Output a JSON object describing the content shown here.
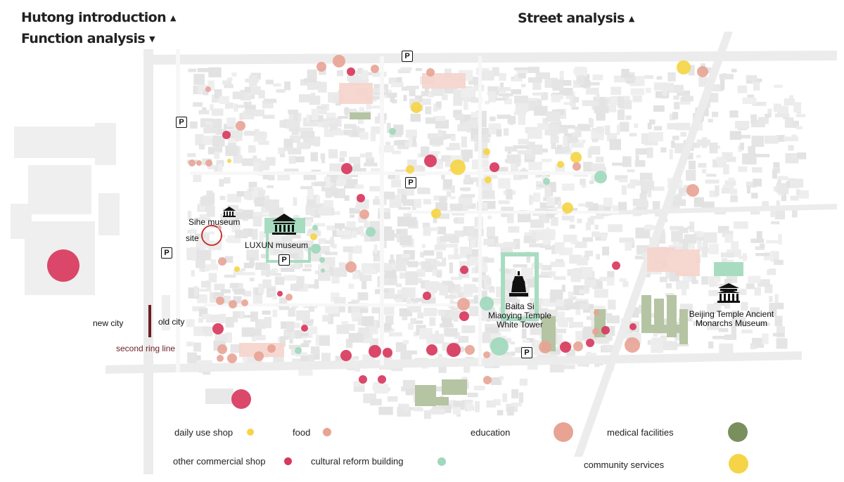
{
  "headers": {
    "hutong_intro": "Hutong introduction",
    "function_analysis": "Function analysis",
    "street_analysis": "Street analysis"
  },
  "map_labels": {
    "sihe_museum": "Sihe museum",
    "site": "site",
    "luxun_museum": "LUXUN museum",
    "baita_line1": "Baita Si",
    "baita_line2": "Miaoying Temple",
    "baita_line3": "White Tower",
    "beijing_line1": "Beijing Temple Ancient",
    "beijing_line2": "Monarchs Museum",
    "new_city": "new city",
    "old_city": "old city",
    "second_ring": "second ring line",
    "parking": "P"
  },
  "legend": {
    "daily_use_shop": "daily use shop",
    "food": "food",
    "education": "education",
    "medical": "medical facilities",
    "other_commercial": "other commercial shop",
    "cultural_reform": "cultural reform building",
    "community": "community services"
  },
  "colors": {
    "daily_use_shop": "#f5d547",
    "food": "#e8a393",
    "education": "#e8a393",
    "medical": "#7a8f5e",
    "other_commercial": "#d8385d",
    "cultural_reform": "#9fd8bd",
    "community": "#f5d547",
    "landmark_green": "#a8dcc0",
    "green_block": "#b5c4a2",
    "pink_block": "#f6d4cc",
    "ring_line": "#6b1f24"
  }
}
